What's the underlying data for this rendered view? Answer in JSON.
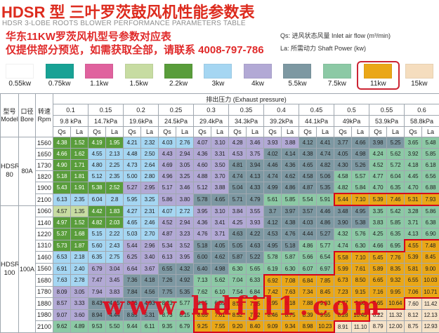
{
  "header": {
    "title": "HDSR 型 三叶罗茨鼓风机性能参数表",
    "subtitle": "HDSR 3-LOBE ROOTS BLOWER PERFORMANCE PARAMETERS TABLE",
    "notice_line1": "华东11KW罗茨风机型号参数对应表",
    "notice_line2": "仅提供部分预览，如需获取全部，请联系 4008-797-786",
    "qs_note": "Qs: 进风状态风量 Inlet air flow (m³/min)",
    "la_note": "La: 所需动力 Shaft Power (kw)"
  },
  "legend": {
    "items": [
      {
        "label": "0.55kw",
        "color": "#ffffff",
        "highlight": false
      },
      {
        "label": "0.75kw",
        "color": "#18a295",
        "highlight": false
      },
      {
        "label": "1.1kw",
        "color": "#e0629e",
        "highlight": false
      },
      {
        "label": "1.5kw",
        "color": "#c7dca2",
        "highlight": false
      },
      {
        "label": "2.2kw",
        "color": "#599d3b",
        "highlight": false
      },
      {
        "label": "3kw",
        "color": "#a5d6f2",
        "highlight": false
      },
      {
        "label": "4kw",
        "color": "#b2a9d5",
        "highlight": false
      },
      {
        "label": "5.5kw",
        "color": "#7d98a2",
        "highlight": false
      },
      {
        "label": "7.5kw",
        "color": "#8cc9a5",
        "highlight": false
      },
      {
        "label": "11kw",
        "color": "#eaa717",
        "highlight": true
      },
      {
        "label": "15kw",
        "color": "#f5ddbe",
        "highlight": false
      }
    ]
  },
  "table": {
    "col_model": "型号",
    "col_model_en": "Model",
    "col_bore": "口径",
    "col_bore_en": "Bore",
    "col_rpm": "转速",
    "col_rpm_en": "Rpm",
    "pressure_header": "排出压力 (Exhaust pressure)",
    "pressures": [
      "0.1",
      "0.15",
      "0.2",
      "0.25",
      "0.3",
      "0.35",
      "0.4",
      "0.45",
      "0.5",
      "0.55",
      "0.6"
    ],
    "kpa": [
      "9.8 kPa",
      "14.7kPa",
      "19.6kPa",
      "24.5kPa",
      "29.4kPa",
      "34.3kPa",
      "39.2kPa",
      "44.1kPa",
      "49kPa",
      "53.9kPa",
      "58.8kPa"
    ],
    "qs_label": "Qs",
    "la_label": "La",
    "power_colors": {
      "1.5": "#c7dca2",
      "2.2": "#599d3b",
      "3": "#a5d6f2",
      "4": "#b2a9d5",
      "5.5": "#7d98a2",
      "7.5": "#8cc9a5",
      "11": "#eaa717",
      "15": "#f6e3c9"
    },
    "white_text_on": [
      "2.2"
    ],
    "boundary_power": "11",
    "boundary_color": "#d6001c",
    "groups": [
      {
        "model": "HDSR",
        "model2": "80",
        "bore": "80A",
        "rows": [
          {
            "rpm": "1560",
            "v": [
              "4.38",
              "1.52",
              "4.19",
              "1.95",
              "4.21",
              "2.32",
              "4.03",
              "2.76",
              "4.07",
              "3.10",
              "4.28",
              "3.46",
              "3.93",
              "3.88",
              "4.12",
              "4.41",
              "3.77",
              "4.66",
              "3.98",
              "5.25",
              "3.65",
              "5.48"
            ],
            "c": [
              "2.2",
              "2.2",
              "3",
              "3",
              "4",
              "4",
              "4",
              "5.5",
              "5.5",
              "5.5",
              "7.5"
            ]
          },
          {
            "rpm": "1650",
            "v": [
              "4.66",
              "1.62",
              "4.55",
              "2.13",
              "4.48",
              "2.50",
              "4.43",
              "2.94",
              "4.36",
              "3.31",
              "4.53",
              "3.75",
              "4.02",
              "4.14",
              "4.38",
              "4.74",
              "4.05",
              "4.98",
              "4.24",
              "5.62",
              "3.92",
              "5.85"
            ],
            "c": [
              "2.2",
              "3",
              "3",
              "4",
              "4",
              "4",
              "5.5",
              "5.5",
              "5.5",
              "7.5",
              "7.5"
            ]
          },
          {
            "rpm": "1730",
            "v": [
              "4.90",
              "1.71",
              "4.80",
              "2.25",
              "4.73",
              "2.64",
              "4.69",
              "3.05",
              "4.60",
              "3.50",
              "4.81",
              "3.94",
              "4.46",
              "4.36",
              "4.65",
              "4.82",
              "4.30",
              "5.26",
              "4.52",
              "5.72",
              "4.18",
              "6.18"
            ],
            "c": [
              "2.2",
              "3",
              "3",
              "4",
              "4",
              "5.5",
              "5.5",
              "5.5",
              "5.5",
              "7.5",
              "7.5"
            ]
          },
          {
            "rpm": "1820",
            "v": [
              "5.18",
              "1.81",
              "5.12",
              "2.35",
              "5.00",
              "2.80",
              "4.96",
              "3.25",
              "4.88",
              "3.70",
              "4.74",
              "4.13",
              "4.74",
              "4.62",
              "4.58",
              "5.06",
              "4.58",
              "5.57",
              "4.77",
              "6.04",
              "4.45",
              "6.56"
            ],
            "c": [
              "2.2",
              "3",
              "3",
              "4",
              "4",
              "5.5",
              "5.5",
              "5.5",
              "7.5",
              "7.5",
              "7.5"
            ]
          },
          {
            "rpm": "1900",
            "v": [
              "5.43",
              "1.91",
              "5.38",
              "2.52",
              "5.27",
              "2.95",
              "5.17",
              "3.46",
              "5.12",
              "3.88",
              "5.04",
              "4.33",
              "4.99",
              "4.86",
              "4.87",
              "5.35",
              "4.82",
              "5.84",
              "4.70",
              "6.35",
              "4.70",
              "6.88"
            ],
            "c": [
              "2.2",
              "2.2",
              "4",
              "4",
              "4",
              "5.5",
              "5.5",
              "5.5",
              "7.5",
              "7.5",
              "7.5"
            ]
          },
          {
            "rpm": "2100",
            "v": [
              "6.13",
              "2.35",
              "6.04",
              "2.8",
              "5.95",
              "3.25",
              "5.86",
              "3.80",
              "5.78",
              "4.65",
              "5.71",
              "4.79",
              "5.61",
              "5.85",
              "5.54",
              "5.91",
              "5.44",
              "7.10",
              "5.39",
              "7.46",
              "5.31",
              "7.93"
            ],
            "c": [
              "3",
              "3",
              "3",
              "4",
              "5.5",
              "5.5",
              "7.5",
              "7.5",
              "11",
              "11",
              "11"
            ]
          }
        ]
      },
      {
        "model": "HDSR",
        "model2": "100",
        "bore": "100A",
        "rows": [
          {
            "rpm": "1060",
            "v": [
              "4.57",
              "1.35",
              "4.42",
              "1.83",
              "4.27",
              "2.31",
              "4.07",
              "2.72",
              "3.95",
              "3.10",
              "3.84",
              "3.55",
              "3.7",
              "3.97",
              "3.57",
              "4.46",
              "3.48",
              "4.95",
              "3.35",
              "5.42",
              "3.28",
              "5.86"
            ],
            "c": [
              "1.5",
              "2.2",
              "3",
              "3",
              "4",
              "4",
              "5.5",
              "5.5",
              "5.5",
              "7.5",
              "7.5"
            ]
          },
          {
            "rpm": "1140",
            "v": [
              "4.97",
              "1.52",
              "4.82",
              "2.03",
              "4.65",
              "2.46",
              "4.52",
              "2.94",
              "4.36",
              "3.41",
              "4.25",
              "3.93",
              "4.12",
              "4.38",
              "4.03",
              "4.86",
              "3.90",
              "5.38",
              "3.83",
              "5.85",
              "3.71",
              "6.38"
            ],
            "c": [
              "2.2",
              "2.2",
              "3",
              "4",
              "4",
              "4",
              "5.5",
              "5.5",
              "5.5",
              "7.5",
              "7.5"
            ]
          },
          {
            "rpm": "1220",
            "v": [
              "5.37",
              "1.68",
              "5.15",
              "2.22",
              "5.03",
              "2.70",
              "4.87",
              "3.23",
              "4.76",
              "3.71",
              "4.63",
              "4.22",
              "4.53",
              "4.76",
              "4.44",
              "5.27",
              "4.32",
              "5.76",
              "4.25",
              "6.35",
              "4.13",
              "6.90"
            ],
            "c": [
              "2.2",
              "3",
              "3",
              "4",
              "4",
              "5.5",
              "5.5",
              "5.5",
              "7.5",
              "7.5",
              "7.5"
            ]
          },
          {
            "rpm": "1310",
            "v": [
              "5.73",
              "1.87",
              "5.60",
              "2.43",
              "5.44",
              "2.96",
              "5.34",
              "3.52",
              "5.18",
              "4.05",
              "5.05",
              "4.63",
              "4.95",
              "5.18",
              "4.86",
              "5.77",
              "4.74",
              "6.30",
              "4.66",
              "6.95",
              "4.55",
              "7.48"
            ],
            "c": [
              "2.2",
              "3",
              "4",
              "4",
              "5.5",
              "5.5",
              "5.5",
              "7.5",
              "7.5",
              "7.5",
              "11"
            ]
          },
          {
            "rpm": "1460",
            "v": [
              "6.53",
              "2.18",
              "6.35",
              "2.75",
              "6.25",
              "3.40",
              "6.13",
              "3.95",
              "6.00",
              "4.62",
              "5.87",
              "5.22",
              "5.78",
              "5.87",
              "5.66",
              "6.54",
              "5.58",
              "7.10",
              "5.45",
              "7.76",
              "5.39",
              "8.45"
            ],
            "c": [
              "3",
              "3",
              "4",
              "4",
              "5.5",
              "5.5",
              "7.5",
              "7.5",
              "11",
              "11",
              "11"
            ]
          },
          {
            "rpm": "1560",
            "v": [
              "6.91",
              "2.40",
              "6.79",
              "3.04",
              "6.64",
              "3.67",
              "6.55",
              "4.32",
              "6.40",
              "4.98",
              "6.30",
              "5.65",
              "6.19",
              "6.30",
              "6.07",
              "6.97",
              "5.99",
              "7.61",
              "5.89",
              "8.35",
              "5.81",
              "9.00"
            ],
            "c": [
              "3",
              "4",
              "4",
              "5.5",
              "5.5",
              "7.5",
              "7.5",
              "7.5",
              "11",
              "11",
              "11"
            ]
          },
          {
            "rpm": "1680",
            "v": [
              "7.63",
              "2.78",
              "7.47",
              "3.45",
              "7.36",
              "4.18",
              "7.26",
              "4.92",
              "7.13",
              "5.62",
              "7.04",
              "6.33",
              "6.92",
              "7.08",
              "6.84",
              "7.85",
              "6.73",
              "8.50",
              "6.65",
              "9.32",
              "6.55",
              "10.03"
            ],
            "c": [
              "3",
              "4",
              "5.5",
              "5.5",
              "7.5",
              "7.5",
              "11",
              "11",
              "11",
              "11",
              "11"
            ]
          },
          {
            "rpm": "1780",
            "v": [
              "8.09",
              "3.05",
              "7.94",
              "3.83",
              "7.84",
              "4.56",
              "7.75",
              "5.35",
              "7.62",
              "6.10",
              "7.54",
              "6.84",
              "7.42",
              "7.63",
              "7.34",
              "8.45",
              "7.23",
              "9.15",
              "7.16",
              "9.95",
              "7.06",
              "10.71"
            ],
            "c": [
              "4",
              "4",
              "5.5",
              "5.5",
              "7.5",
              "7.5",
              "11",
              "11",
              "11",
              "11",
              "11"
            ]
          },
          {
            "rpm": "1880",
            "v": [
              "8.57",
              "3.33",
              "8.43",
              "4.15",
              "8.36",
              "4.93",
              "8.23",
              "5.77",
              "8.15",
              "6.55",
              "8.03",
              "7.35",
              "7.95",
              "8.18",
              "7.88",
              "9.03",
              "7.77",
              "9.80",
              "7.65",
              "10.64",
              "7.60",
              "11.42"
            ],
            "c": [
              "4",
              "5.5",
              "5.5",
              "7.5",
              "7.5",
              "11",
              "11",
              "11",
              "11",
              "11",
              "15"
            ]
          },
          {
            "rpm": "1980",
            "v": [
              "9.07",
              "3.60",
              "8.94",
              "4.44",
              "8.85",
              "5.31",
              "8.73",
              "6.15",
              "8.65",
              "7.01",
              "8.52",
              "7.92",
              "8.46",
              "8.75",
              "8.39",
              "9.65",
              "8.28",
              "10.45",
              "8.22",
              "11.32",
              "8.12",
              "12.13"
            ],
            "c": [
              "4",
              "5.5",
              "5.5",
              "7.5",
              "11",
              "11",
              "11",
              "11",
              "11",
              "15",
              "15"
            ]
          },
          {
            "rpm": "2100",
            "v": [
              "9.62",
              "4.89",
              "9.53",
              "5.50",
              "9.44",
              "6.11",
              "9.35",
              "6.79",
              "9.25",
              "7.55",
              "9.20",
              "8.40",
              "9.09",
              "9.34",
              "8.98",
              "10.23",
              "8.91",
              "11.10",
              "8.79",
              "12.00",
              "8.75",
              "12.93"
            ],
            "c": [
              "7.5",
              "7.5",
              "7.5",
              "7.5",
              "11",
              "11",
              "11",
              "11",
              "15",
              "15",
              "15"
            ]
          }
        ]
      }
    ]
  },
  "watermark": "www.hdfjl1.com"
}
